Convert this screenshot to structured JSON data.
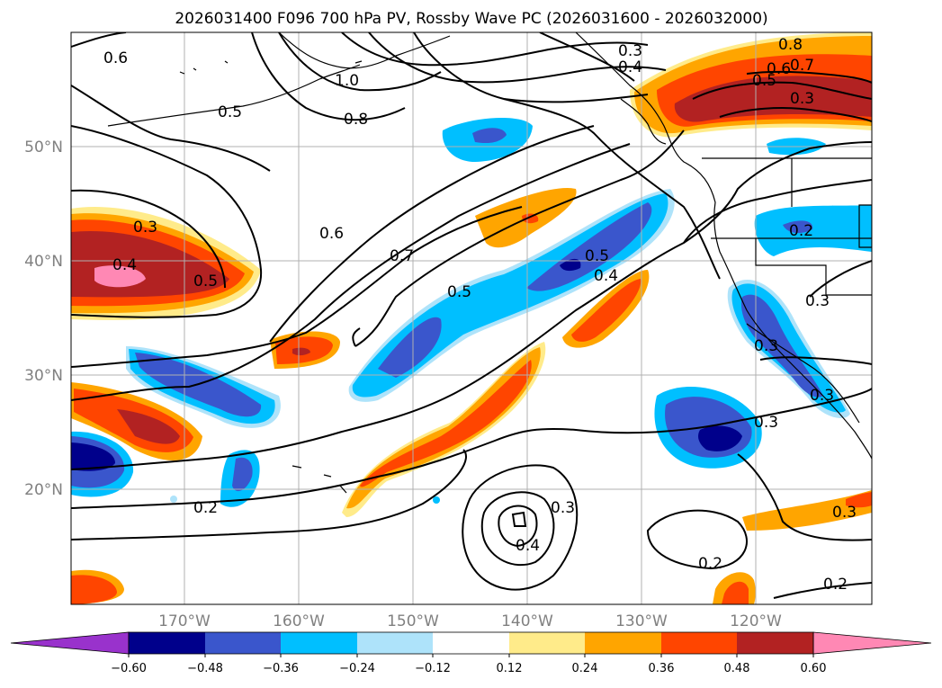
{
  "title": "2026031400 F096 700 hPa PV, Rossby Wave PC (2026031600 - 2026032000)",
  "lat_labels": [
    "50°N",
    "40°N",
    "30°N",
    "20°N"
  ],
  "lon_labels": [
    "170°W",
    "160°W",
    "150°W",
    "140°W",
    "130°W",
    "120°W"
  ],
  "colorbar": {
    "ticks": [
      "−0.60",
      "−0.48",
      "−0.36",
      "−0.24",
      "−0.12",
      "0.12",
      "0.24",
      "0.36",
      "0.48",
      "0.60"
    ],
    "colors": [
      "#9932cc",
      "#00008b",
      "#3a56cc",
      "#00bfff",
      "#aee3fa",
      "#ffffff",
      "#ffeb8a",
      "#ffa500",
      "#ff4500",
      "#b22222",
      "#ff88b4"
    ]
  },
  "contour_labels": [
    "0.6",
    "0.5",
    "1.0",
    "0.8",
    "0.3",
    "0.4",
    "0.8",
    "0.7",
    "0.6",
    "0.5",
    "0.3",
    "0.3",
    "0.4",
    "0.5",
    "0.6",
    "0.7",
    "0.5",
    "0.5",
    "0.4",
    "0.2",
    "0.2",
    "0.3",
    "0.3",
    "0.3",
    "0.3",
    "0.4",
    "0.2",
    "0.2",
    "0.3",
    "0.3"
  ],
  "chart_data": {
    "type": "heatmap",
    "title": "2026031400 F096 700 hPa PV, Rossby Wave PC (2026031600 - 2026032000)",
    "region": {
      "lon_range": [
        -180,
        -110
      ],
      "lat_range": [
        10,
        60
      ]
    },
    "fill_variable": "Rossby Wave PC",
    "contour_variable": "700 hPa PV",
    "color_levels": [
      -0.6,
      -0.48,
      -0.36,
      -0.24,
      -0.12,
      0.12,
      0.24,
      0.36,
      0.48,
      0.6
    ],
    "contour_values_labeled": [
      0.2,
      0.3,
      0.4,
      0.5,
      0.6,
      0.7,
      0.8,
      1.0
    ]
  }
}
